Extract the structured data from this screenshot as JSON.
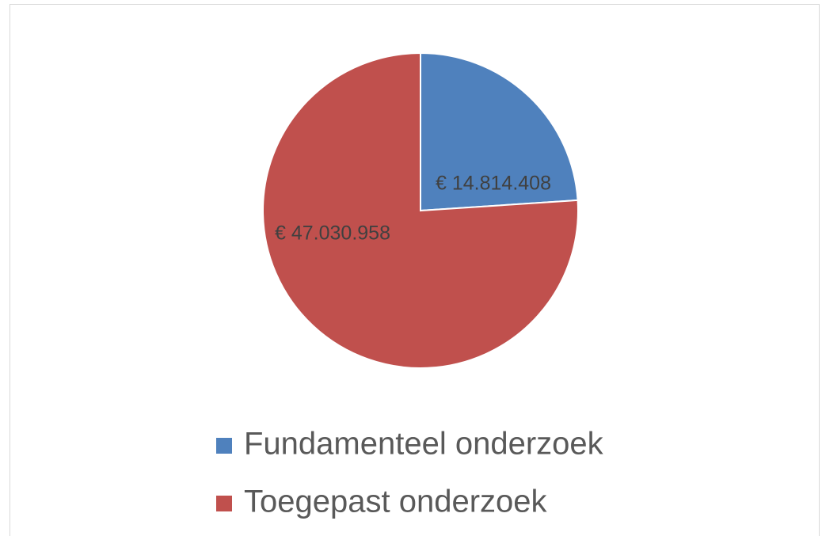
{
  "chart_data": {
    "type": "pie",
    "categories": [
      "Fundamenteel onderzoek",
      "Toegepast onderzoek"
    ],
    "values": [
      14814408,
      47030958
    ],
    "value_labels": [
      "€ 14.814.408",
      "€ 47.030.958"
    ],
    "colors": [
      "#4f81bd",
      "#c0504d"
    ],
    "legend": "bottom"
  }
}
